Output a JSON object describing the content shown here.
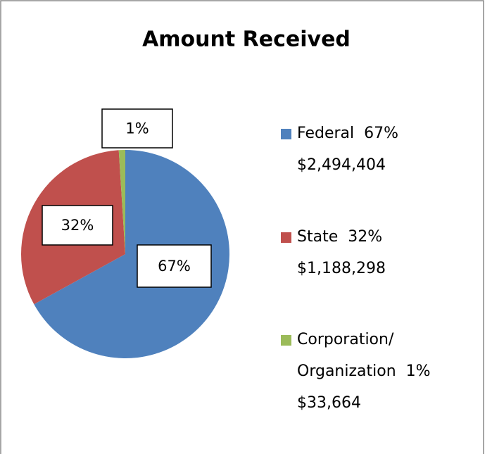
{
  "chart_data": {
    "type": "pie",
    "title": "Amount Received",
    "categories": [
      "Federal",
      "State",
      "Corporation/Organization"
    ],
    "values": [
      67,
      32,
      1
    ],
    "value_labels": [
      "67%",
      "32%",
      "1%"
    ],
    "colors": [
      "#4f81bd",
      "#c0504d",
      "#9bbb59"
    ],
    "legend": [
      [
        "Federal  67%",
        "$2,494,404"
      ],
      [
        "State  32%",
        "$1,188,298"
      ],
      [
        "Corporation/",
        "Organization  1%",
        "$33,664"
      ]
    ]
  }
}
